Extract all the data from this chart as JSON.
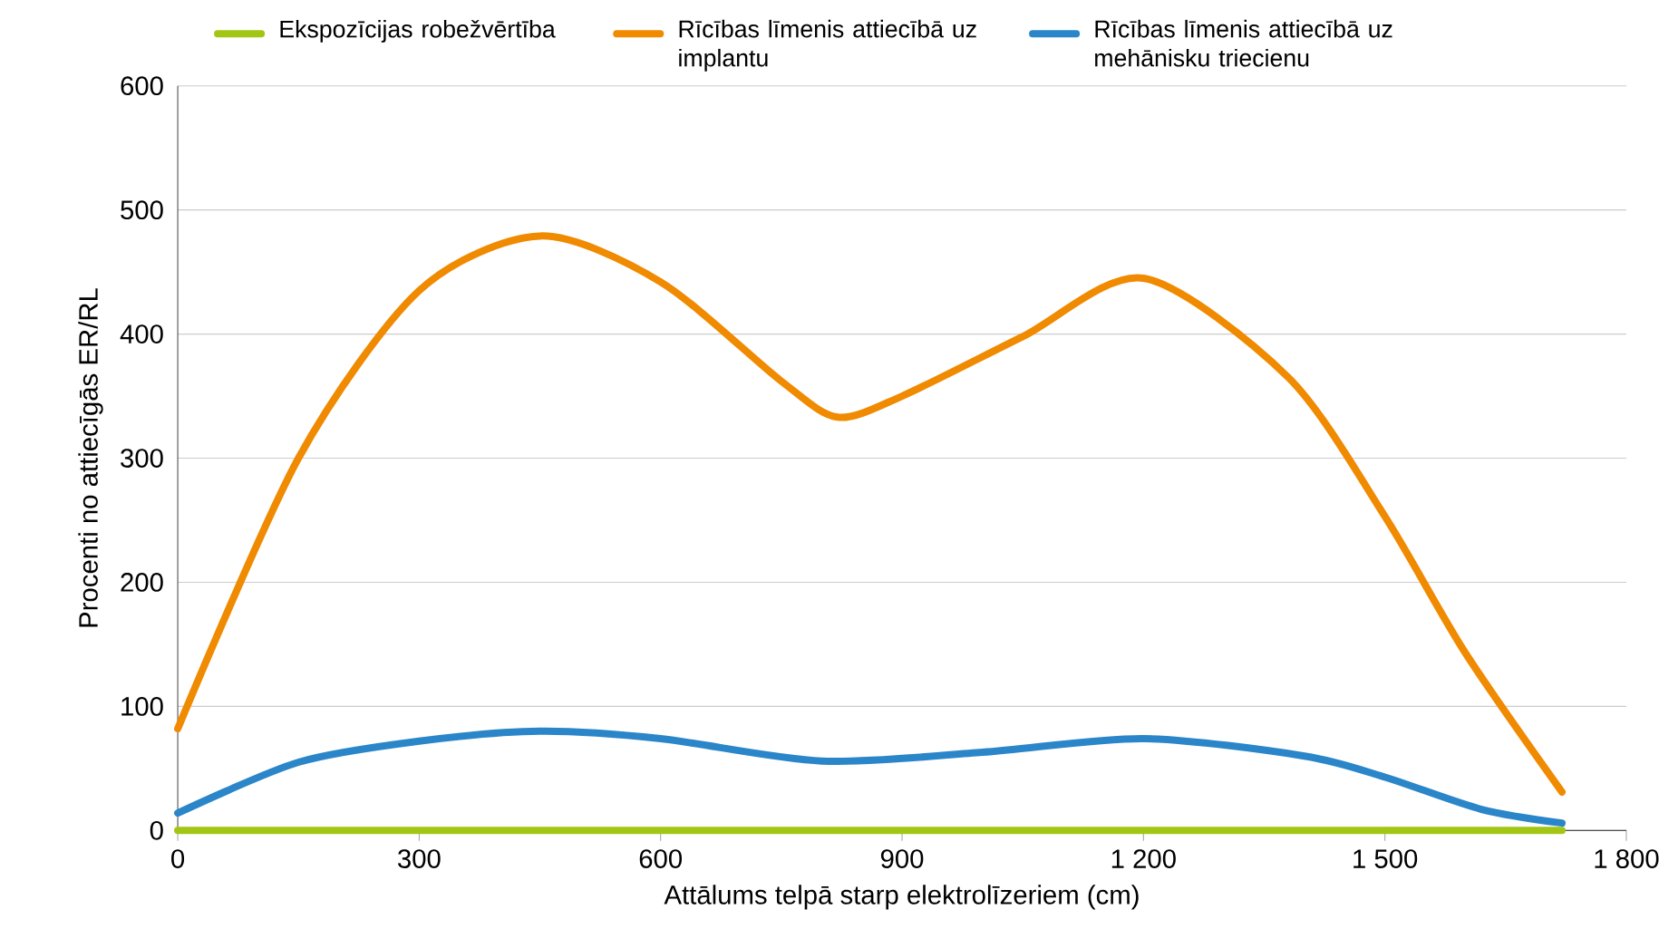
{
  "chart_data": {
    "type": "line",
    "xlabel": "Attālums telpā starp elektrolīzeriem (cm)",
    "ylabel": "Procenti no attiecīgās ER/RL",
    "xlim": [
      0,
      1800
    ],
    "ylim": [
      0,
      600
    ],
    "xticks": [
      0,
      300,
      600,
      900,
      {
        "value": 1200,
        "label": "1 200"
      },
      {
        "value": 1500,
        "label": "1 500"
      },
      {
        "value": 1800,
        "label": "1 800"
      }
    ],
    "yticks": [
      0,
      100,
      200,
      300,
      400,
      500,
      600
    ],
    "grid": "y",
    "legend": "top",
    "line_style": "solid",
    "marker": "none",
    "series": [
      {
        "name": "Ekspozīcijas robežvērtība",
        "color": "#a3c614",
        "x": [
          0,
          1720
        ],
        "values": [
          0,
          0
        ]
      },
      {
        "name": "Rīcības līmenis attiecībā uz implantu",
        "color": "#f08a00",
        "x": [
          0,
          150,
          300,
          450,
          600,
          750,
          820,
          900,
          1050,
          1200,
          1380,
          1500,
          1600,
          1720
        ],
        "values": [
          82,
          300,
          435,
          479,
          442,
          362,
          333,
          350,
          398,
          445,
          365,
          253,
          143,
          31
        ]
      },
      {
        "name": "Rīcības līmenis attiecībā uz mehānisku triecienu",
        "color": "#2a86c8",
        "x": [
          0,
          150,
          300,
          450,
          600,
          800,
          1000,
          1200,
          1400,
          1500,
          1620,
          1720
        ],
        "values": [
          14,
          55,
          72,
          80,
          74,
          56,
          63,
          74,
          60,
          43,
          17,
          6
        ]
      }
    ]
  }
}
